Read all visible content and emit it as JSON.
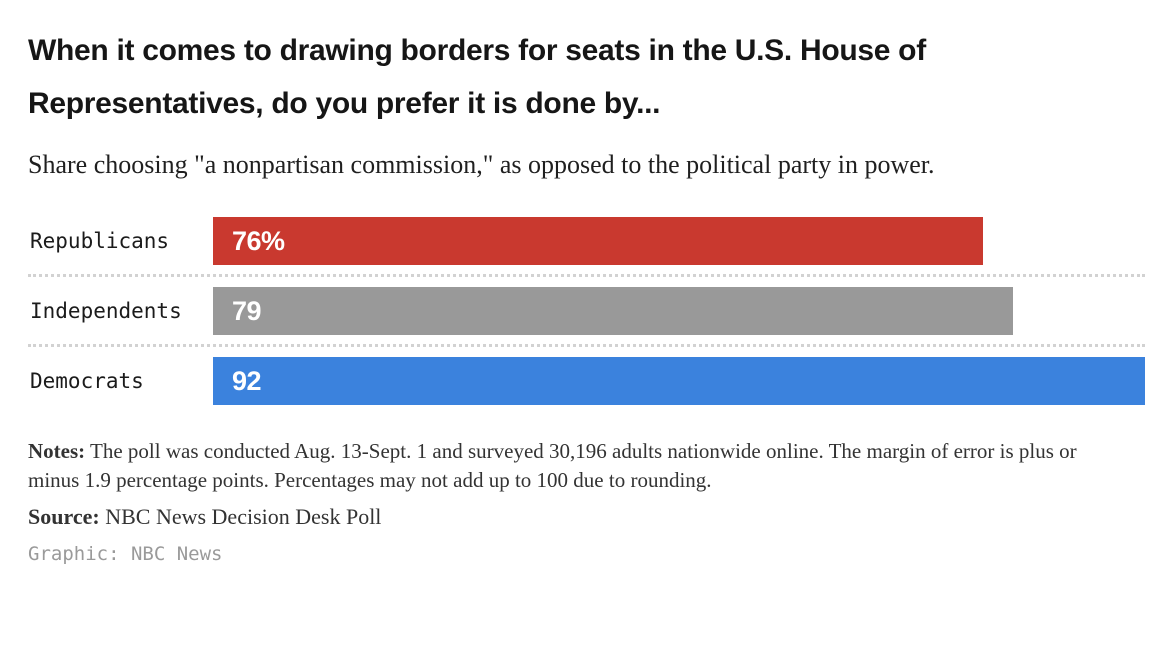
{
  "chart_data": {
    "type": "bar",
    "orientation": "horizontal",
    "title": "When it comes to drawing borders for seats in the U.S. House of Representatives, do you prefer it is done by...",
    "subtitle": "Share choosing \"a nonpartisan commission,\" as opposed to the political party in power.",
    "categories": [
      "Republicans",
      "Independents",
      "Democrats"
    ],
    "values": [
      76,
      79,
      92
    ],
    "value_labels": [
      "76%",
      "79",
      "92"
    ],
    "unit": "percent",
    "bar_colors": [
      "#c9392f",
      "#999999",
      "#3b82dd"
    ],
    "xlim": [
      0,
      92
    ],
    "grid": "dotted row separators",
    "legend": "none",
    "colors": {
      "divider": "#d2d2d2",
      "value_text": "#ffffff",
      "label_text": "#1b1b1b"
    }
  },
  "footer": {
    "notes_label": "Notes:",
    "notes_text": " The poll was conducted Aug. 13-Sept. 1 and surveyed 30,196 adults nationwide online. The margin of error is plus or minus 1.9 percentage points. Percentages may not add up to 100 due to rounding.",
    "source_label": "Source:",
    "source_text": " NBC News Decision Desk Poll",
    "credit": "Graphic: NBC News"
  }
}
